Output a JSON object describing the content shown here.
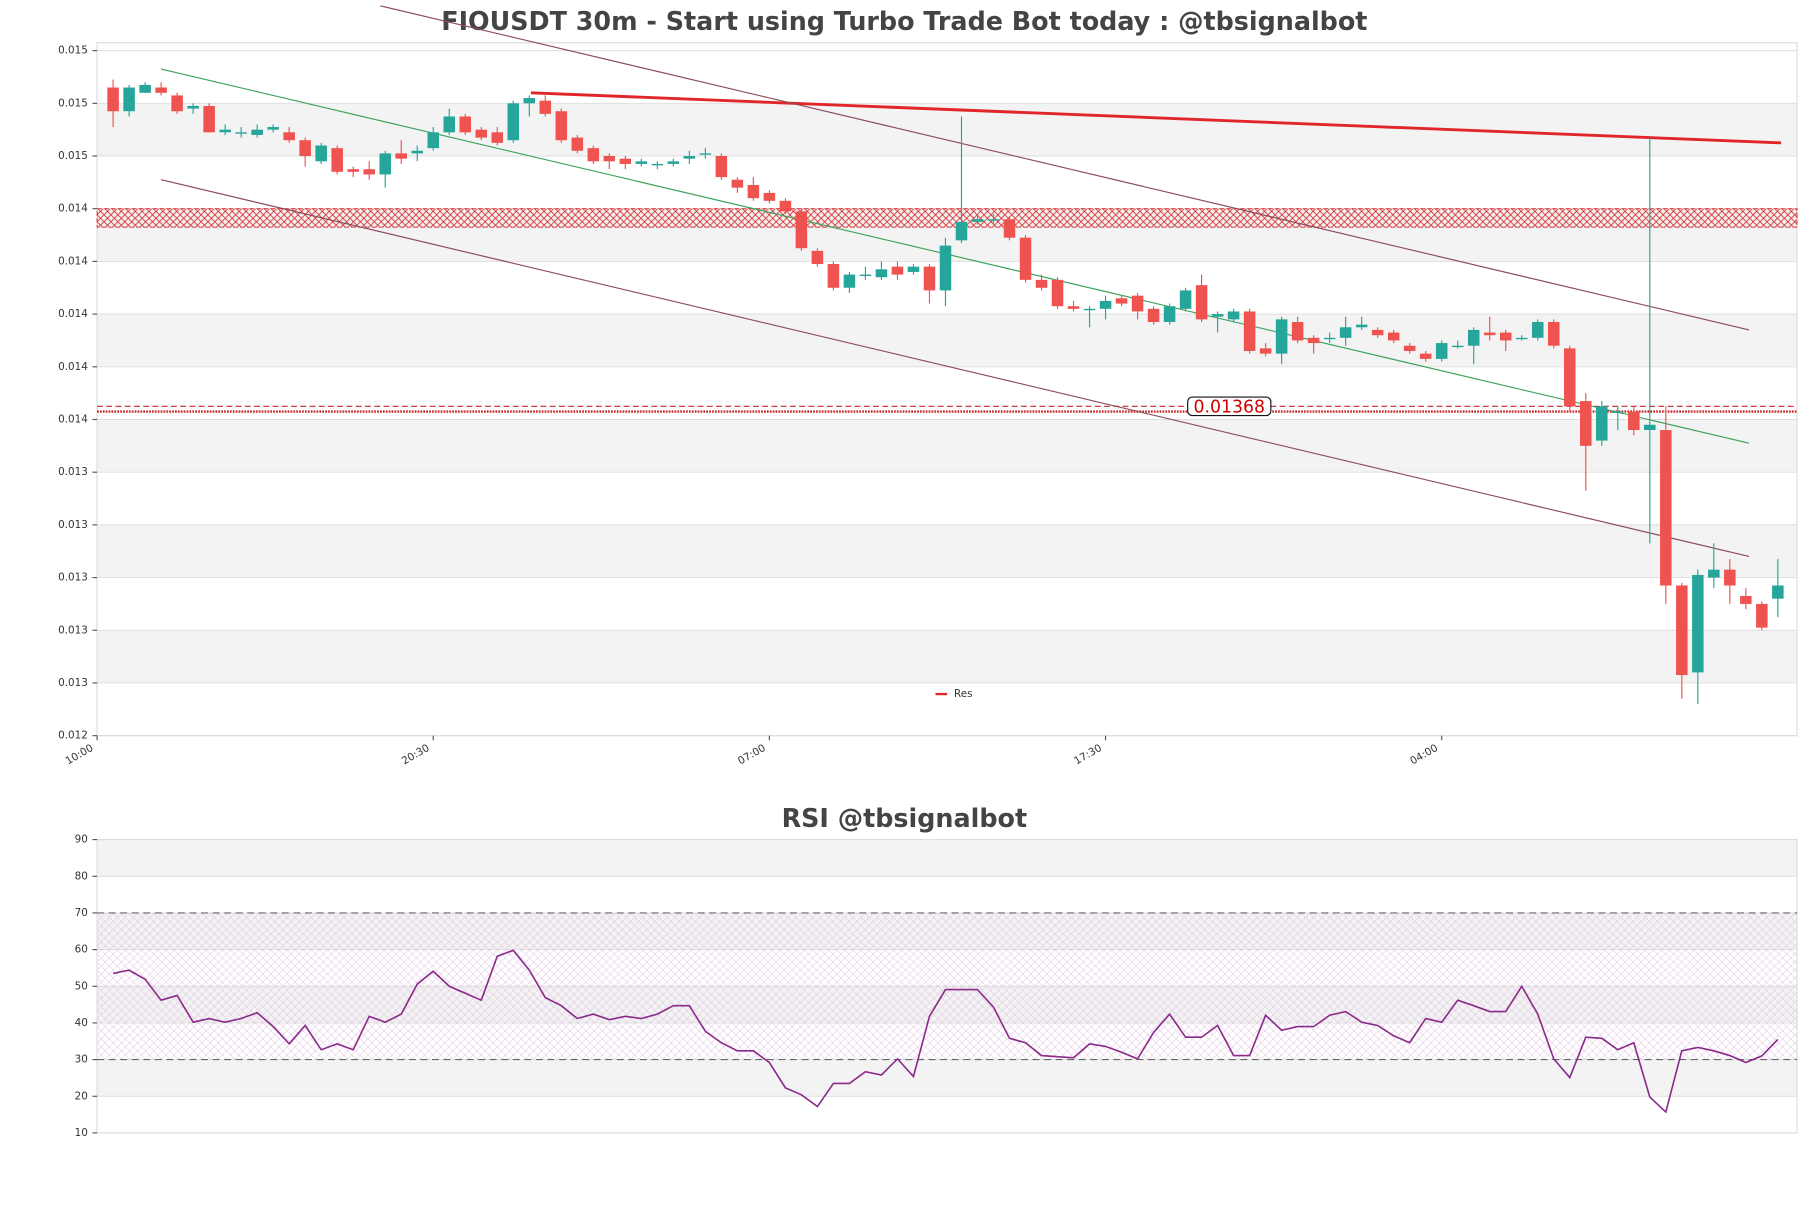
{
  "chart_data": [
    {
      "type": "candlestick",
      "title": "FIOUSDT 30m - Start using Turbo Trade Bot today : @tbsignalbot",
      "x": [
        0,
        1,
        2,
        3,
        4,
        5,
        6,
        7,
        8,
        9,
        10,
        11,
        12,
        13,
        14,
        15,
        16,
        17,
        18,
        19,
        20,
        21,
        22,
        23,
        24,
        25,
        26,
        27,
        28,
        29,
        30,
        31,
        32,
        33,
        34,
        35,
        36,
        37,
        38,
        39,
        40,
        41,
        42,
        43,
        44,
        45,
        46,
        47,
        48,
        49,
        50,
        51,
        52,
        53,
        54,
        55,
        56,
        57,
        58,
        59,
        60,
        61,
        62,
        63,
        64,
        65,
        66,
        67,
        68,
        69,
        70,
        71,
        72,
        73,
        74,
        75,
        76,
        77,
        78,
        79,
        80,
        81,
        82,
        83,
        84,
        85,
        86,
        87,
        88,
        89,
        90,
        91,
        92,
        93,
        94,
        95,
        96,
        97,
        98,
        99,
        100,
        101,
        102,
        103,
        104
      ],
      "open": [
        0.01489,
        0.0148,
        0.01487,
        0.01489,
        0.01486,
        0.01481,
        0.01482,
        0.01472,
        0.01472,
        0.01471,
        0.01473,
        0.01472,
        0.01469,
        0.01461,
        0.01466,
        0.01458,
        0.01458,
        0.01456,
        0.01464,
        0.01464,
        0.01466,
        0.01472,
        0.01478,
        0.01473,
        0.01472,
        0.01469,
        0.01483,
        0.01484,
        0.0148,
        0.0147,
        0.01466,
        0.01463,
        0.01462,
        0.0146,
        0.0146,
        0.0146,
        0.01462,
        0.01464,
        0.01463,
        0.01454,
        0.01452,
        0.01449,
        0.01446,
        0.01442,
        0.01427,
        0.01422,
        0.01413,
        0.01418,
        0.01417,
        0.01421,
        0.01419,
        0.01421,
        0.01412,
        0.01431,
        0.01438,
        0.01439,
        0.01439,
        0.01432,
        0.01416,
        0.01416,
        0.01406,
        0.01405,
        0.01405,
        0.01409,
        0.0141,
        0.01405,
        0.014,
        0.01405,
        0.01414,
        0.01402,
        0.01401,
        0.01404,
        0.0139,
        0.01388,
        0.014,
        0.01394,
        0.01394,
        0.01394,
        0.01398,
        0.01397,
        0.01396,
        0.01391,
        0.01388,
        0.01386,
        0.01391,
        0.01391,
        0.01396,
        0.01396,
        0.01394,
        0.01394,
        0.014,
        0.0139,
        0.0137,
        0.01355,
        0.01366,
        0.01366,
        0.01359,
        0.01359,
        0.013,
        0.01267,
        0.01303,
        0.01306,
        0.01296,
        0.01293,
        0.01295
      ],
      "high": [
        0.01492,
        0.0149,
        0.01491,
        0.01491,
        0.01487,
        0.01483,
        0.01483,
        0.01475,
        0.01474,
        0.01475,
        0.01475,
        0.01474,
        0.0147,
        0.01468,
        0.01467,
        0.01459,
        0.01461,
        0.01465,
        0.01469,
        0.01467,
        0.01474,
        0.01481,
        0.01479,
        0.01474,
        0.01474,
        0.01484,
        0.01486,
        0.01486,
        0.01481,
        0.01471,
        0.01467,
        0.01464,
        0.01463,
        0.01462,
        0.01461,
        0.01462,
        0.01465,
        0.01466,
        0.01464,
        0.01455,
        0.01455,
        0.0145,
        0.01447,
        0.01443,
        0.01428,
        0.01423,
        0.01419,
        0.01421,
        0.01423,
        0.01423,
        0.01422,
        0.01422,
        0.01432,
        0.01478,
        0.01441,
        0.01441,
        0.0144,
        0.01433,
        0.01418,
        0.01417,
        0.01408,
        0.01406,
        0.0141,
        0.0141,
        0.01411,
        0.01406,
        0.01407,
        0.01413,
        0.01418,
        0.01404,
        0.01405,
        0.01405,
        0.01392,
        0.01402,
        0.01402,
        0.01395,
        0.01396,
        0.01402,
        0.01402,
        0.01398,
        0.01397,
        0.01392,
        0.01389,
        0.01393,
        0.01393,
        0.01398,
        0.01402,
        0.01397,
        0.01395,
        0.01401,
        0.01401,
        0.01391,
        0.01373,
        0.0137,
        0.01368,
        0.01368,
        0.0147,
        0.01368,
        0.01301,
        0.01306,
        0.01316,
        0.0131,
        0.01299,
        0.01294,
        0.0131
      ],
      "low": [
        0.01474,
        0.01478,
        0.01487,
        0.01486,
        0.01479,
        0.01479,
        0.01472,
        0.01471,
        0.0147,
        0.0147,
        0.01472,
        0.01468,
        0.01459,
        0.0146,
        0.01456,
        0.01455,
        0.01454,
        0.01451,
        0.0146,
        0.01461,
        0.01465,
        0.01471,
        0.01471,
        0.01469,
        0.01467,
        0.01468,
        0.01478,
        0.01478,
        0.01468,
        0.01464,
        0.0146,
        0.01458,
        0.01458,
        0.01459,
        0.01458,
        0.01459,
        0.0146,
        0.01462,
        0.01454,
        0.01449,
        0.01446,
        0.01445,
        0.01441,
        0.01427,
        0.01421,
        0.01412,
        0.01411,
        0.01416,
        0.01416,
        0.01416,
        0.01418,
        0.01407,
        0.01406,
        0.0143,
        0.01437,
        0.01437,
        0.01431,
        0.01415,
        0.01412,
        0.01405,
        0.01404,
        0.01398,
        0.01401,
        0.01406,
        0.01401,
        0.01399,
        0.01399,
        0.01404,
        0.014,
        0.01396,
        0.014,
        0.01388,
        0.01387,
        0.01384,
        0.01392,
        0.01388,
        0.01392,
        0.01391,
        0.01397,
        0.01394,
        0.01392,
        0.01388,
        0.01385,
        0.01385,
        0.0139,
        0.01384,
        0.01393,
        0.01389,
        0.01393,
        0.01393,
        0.0139,
        0.01366,
        0.01336,
        0.01353,
        0.01359,
        0.01357,
        0.01316,
        0.01293,
        0.01257,
        0.01255,
        0.01299,
        0.01293,
        0.01291,
        0.01283,
        0.01288
      ],
      "close": [
        0.0148,
        0.01489,
        0.0149,
        0.01487,
        0.0148,
        0.01482,
        0.01472,
        0.01473,
        0.01472,
        0.01473,
        0.01474,
        0.01469,
        0.01463,
        0.01467,
        0.01457,
        0.01457,
        0.01456,
        0.01464,
        0.01462,
        0.01465,
        0.01472,
        0.01478,
        0.01472,
        0.0147,
        0.01468,
        0.01483,
        0.01485,
        0.01479,
        0.01469,
        0.01465,
        0.01461,
        0.01461,
        0.0146,
        0.01461,
        0.0146,
        0.01461,
        0.01463,
        0.01464,
        0.01455,
        0.01451,
        0.01447,
        0.01446,
        0.01442,
        0.01428,
        0.01422,
        0.01413,
        0.01418,
        0.01418,
        0.0142,
        0.01418,
        0.01421,
        0.01412,
        0.01429,
        0.01438,
        0.01439,
        0.01439,
        0.01432,
        0.01416,
        0.01413,
        0.01406,
        0.01405,
        0.01405,
        0.01408,
        0.01407,
        0.01404,
        0.014,
        0.01406,
        0.01412,
        0.01401,
        0.01403,
        0.01404,
        0.01389,
        0.01388,
        0.01401,
        0.01393,
        0.01392,
        0.01394,
        0.01398,
        0.01399,
        0.01395,
        0.01393,
        0.01389,
        0.01386,
        0.01392,
        0.01391,
        0.01397,
        0.01395,
        0.01393,
        0.01394,
        0.014,
        0.01391,
        0.01368,
        0.01353,
        0.01368,
        0.01366,
        0.01359,
        0.01361,
        0.013,
        0.01266,
        0.01304,
        0.01306,
        0.013,
        0.01293,
        0.01284,
        0.013
      ],
      "up_color": "#26a69a",
      "down_color": "#ef5350",
      "xlim": [
        -1,
        105.2
      ],
      "xticks": [
        {
          "value": -1,
          "label": "10:00"
        },
        {
          "value": 20,
          "label": "20:30"
        },
        {
          "value": 41,
          "label": "07:00"
        },
        {
          "value": 62,
          "label": "17:30"
        },
        {
          "value": 83,
          "label": "04:00"
        }
      ],
      "ylim": [
        0.01243,
        0.01506
      ],
      "yticks": [
        {
          "value": 0.01243,
          "label": "0.012"
        },
        {
          "value": 0.01263,
          "label": "0.013"
        },
        {
          "value": 0.01283,
          "label": "0.013"
        },
        {
          "value": 0.01303,
          "label": "0.013"
        },
        {
          "value": 0.01323,
          "label": "0.013"
        },
        {
          "value": 0.01343,
          "label": "0.013"
        },
        {
          "value": 0.01363,
          "label": "0.014"
        },
        {
          "value": 0.01383,
          "label": "0.014"
        },
        {
          "value": 0.01403,
          "label": "0.014"
        },
        {
          "value": 0.01423,
          "label": "0.014"
        },
        {
          "value": 0.01443,
          "label": "0.014"
        },
        {
          "value": 0.01463,
          "label": "0.015"
        },
        {
          "value": 0.01483,
          "label": "0.015"
        },
        {
          "value": 0.01503,
          "label": "0.015"
        }
      ],
      "grid": true,
      "resistance_zone": [
        0.01436,
        0.01443
      ],
      "zone_color": "#d62728",
      "support_lines": [
        0.01368,
        0.01366
      ],
      "trend_lines": [
        {
          "name": "Res",
          "color": "#e0262a",
          "x": [
            26.1,
            104.2
          ],
          "y": [
            0.01487,
            0.01468
          ]
        },
        {
          "color": "#3aa35a",
          "x": [
            3,
            102.2
          ],
          "y": [
            0.01496,
            0.01354
          ]
        },
        {
          "color": "#8b4a5a",
          "x": [
            16.7,
            102.2
          ],
          "y": [
            0.0152,
            0.01397
          ]
        },
        {
          "color": "#8b4a5a",
          "x": [
            3,
            102.2
          ],
          "y": [
            0.01454,
            0.01311
          ]
        }
      ],
      "legend": "lower center"
    },
    {
      "type": "line",
      "title": "RSI @tbsignalbot",
      "x": [
        0,
        1,
        2,
        3,
        4,
        5,
        6,
        7,
        8,
        9,
        10,
        11,
        12,
        13,
        14,
        15,
        16,
        17,
        18,
        19,
        20,
        21,
        22,
        23,
        24,
        25,
        26,
        27,
        28,
        29,
        30,
        31,
        32,
        33,
        34,
        35,
        36,
        37,
        38,
        39,
        40,
        41,
        42,
        43,
        44,
        45,
        46,
        47,
        48,
        49,
        50,
        51,
        52,
        53,
        54,
        55,
        56,
        57,
        58,
        59,
        60,
        61,
        62,
        63,
        64,
        65,
        66,
        67,
        68,
        69,
        70,
        71,
        72,
        73,
        74,
        75,
        76,
        77,
        78,
        79,
        80,
        81,
        82,
        83,
        84,
        85,
        86,
        87,
        88,
        89,
        90,
        91,
        92,
        93,
        94,
        95,
        96,
        97,
        98,
        99,
        100,
        101,
        102,
        103,
        104
      ],
      "values": [
        53.5,
        54.4,
        51.9,
        46.2,
        47.5,
        40.2,
        41.2,
        40.2,
        41.2,
        42.8,
        39,
        34.3,
        39.3,
        32.7,
        34.3,
        32.7,
        41.8,
        40.2,
        42.4,
        50.6,
        54.1,
        50,
        48.1,
        46.2,
        58.2,
        59.8,
        54.4,
        46.9,
        44.7,
        41.2,
        42.4,
        40.9,
        41.8,
        41.2,
        42.4,
        44.7,
        44.7,
        37.7,
        34.6,
        32.4,
        32.4,
        29.2,
        22.3,
        20.4,
        17.2,
        23.5,
        23.5,
        26.7,
        25.8,
        30.2,
        25.4,
        41.8,
        49.1,
        49.1,
        49.1,
        44.3,
        35.8,
        34.6,
        31.1,
        30.8,
        30.5,
        34.3,
        33.6,
        32,
        30.2,
        37.4,
        42.4,
        36.1,
        36.1,
        39.3,
        31.1,
        31.1,
        42.1,
        38,
        39,
        39,
        42.1,
        43.1,
        40.2,
        39.3,
        36.5,
        34.6,
        41.2,
        40.2,
        46.2,
        44.7,
        43.1,
        43.1,
        50,
        42.4,
        30.2,
        25.1,
        36.1,
        35.8,
        32.7,
        34.6,
        19.8,
        15.7,
        32.4,
        33.3,
        32.4,
        31.1,
        29.2,
        31,
        35.5
      ],
      "color": "#8a2a8a",
      "xlim": [
        -1,
        105.2
      ],
      "ylim": [
        10,
        90
      ],
      "yticks": [
        10,
        20,
        30,
        40,
        50,
        60,
        70,
        80,
        90
      ],
      "grid": true,
      "rsi_levels": [
        70,
        30
      ]
    }
  ]
}
